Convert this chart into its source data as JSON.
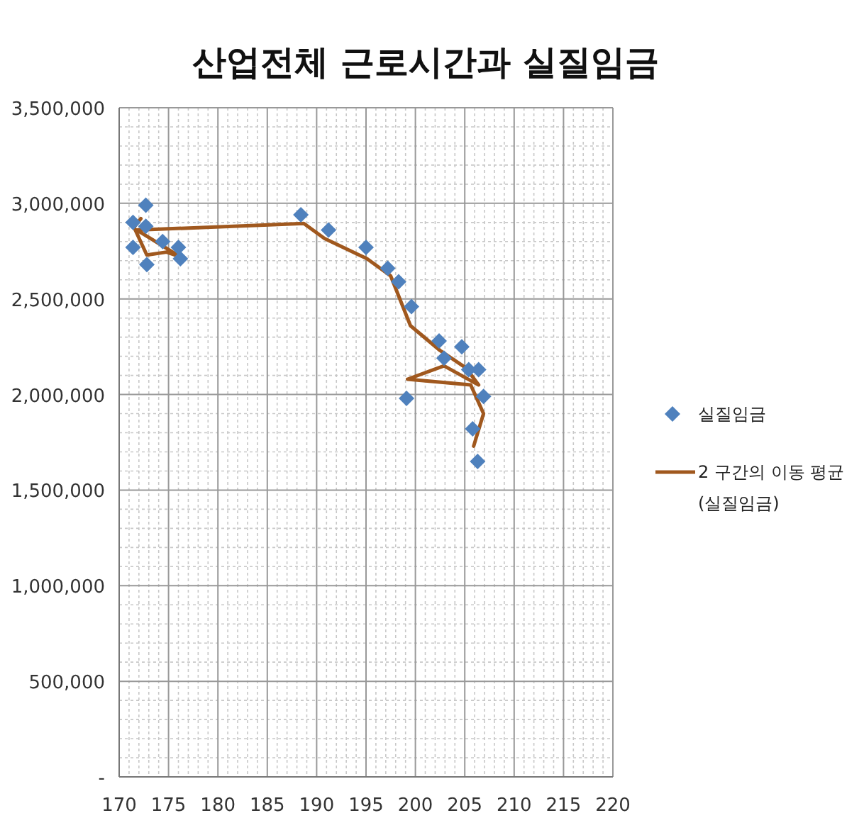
{
  "chart_data": {
    "type": "scatter",
    "title": "산업전체 근로시간과 실질임금",
    "series": [
      {
        "name": "실질임금",
        "color": "#4f81bd",
        "marker": "diamond",
        "x": [
          172.7,
          171.4,
          172.7,
          171.4,
          174.4,
          176.0,
          176.2,
          172.8,
          188.4,
          191.2,
          195.0,
          197.2,
          198.3,
          199.6,
          202.4,
          204.7,
          202.9,
          205.4,
          206.4,
          199.1,
          206.9,
          205.8,
          206.3
        ],
        "values": [
          2990000,
          2900000,
          2880000,
          2770000,
          2800000,
          2770000,
          2710000,
          2680000,
          2940000,
          2860000,
          2770000,
          2660000,
          2590000,
          2460000,
          2280000,
          2250000,
          2190000,
          2130000,
          2130000,
          1980000,
          1990000,
          1820000,
          1650000
        ]
      },
      {
        "name": "2 구간의 이동 평균 (실질임금)",
        "type": "line",
        "color": "#a0581e",
        "marker": "none",
        "line_style": "solid",
        "x": [
          172.2,
          171.5,
          172.8,
          174.8,
          176.2,
          171.8,
          188.7,
          190.8,
          195.1,
          197.5,
          199.5,
          202.5,
          205.1,
          206.4,
          202.9,
          199.2,
          205.6,
          206.9,
          205.9
        ],
        "values": [
          2920000,
          2875000,
          2730000,
          2745000,
          2720000,
          2860000,
          2895000,
          2816000,
          2710000,
          2620000,
          2360000,
          2230000,
          2140000,
          2050000,
          2150000,
          2080000,
          2050000,
          1900000,
          1730000
        ]
      }
    ],
    "xlim": [
      170,
      220
    ],
    "xticks": [
      170,
      175,
      180,
      185,
      190,
      195,
      200,
      205,
      210,
      215,
      220
    ],
    "ylim": [
      0,
      3500000
    ],
    "yticks": [
      {
        "value": 0,
        "label": "-"
      },
      {
        "value": 500000,
        "label": "500,000"
      },
      {
        "value": 1000000,
        "label": "1,000,000"
      },
      {
        "value": 1500000,
        "label": "1,500,000"
      },
      {
        "value": 2000000,
        "label": "2,000,000"
      },
      {
        "value": 2500000,
        "label": "2,500,000"
      },
      {
        "value": 3000000,
        "label": "3,000,000"
      },
      {
        "value": 3500000,
        "label": "3,500,000"
      }
    ],
    "grid": true,
    "legend": "right"
  }
}
